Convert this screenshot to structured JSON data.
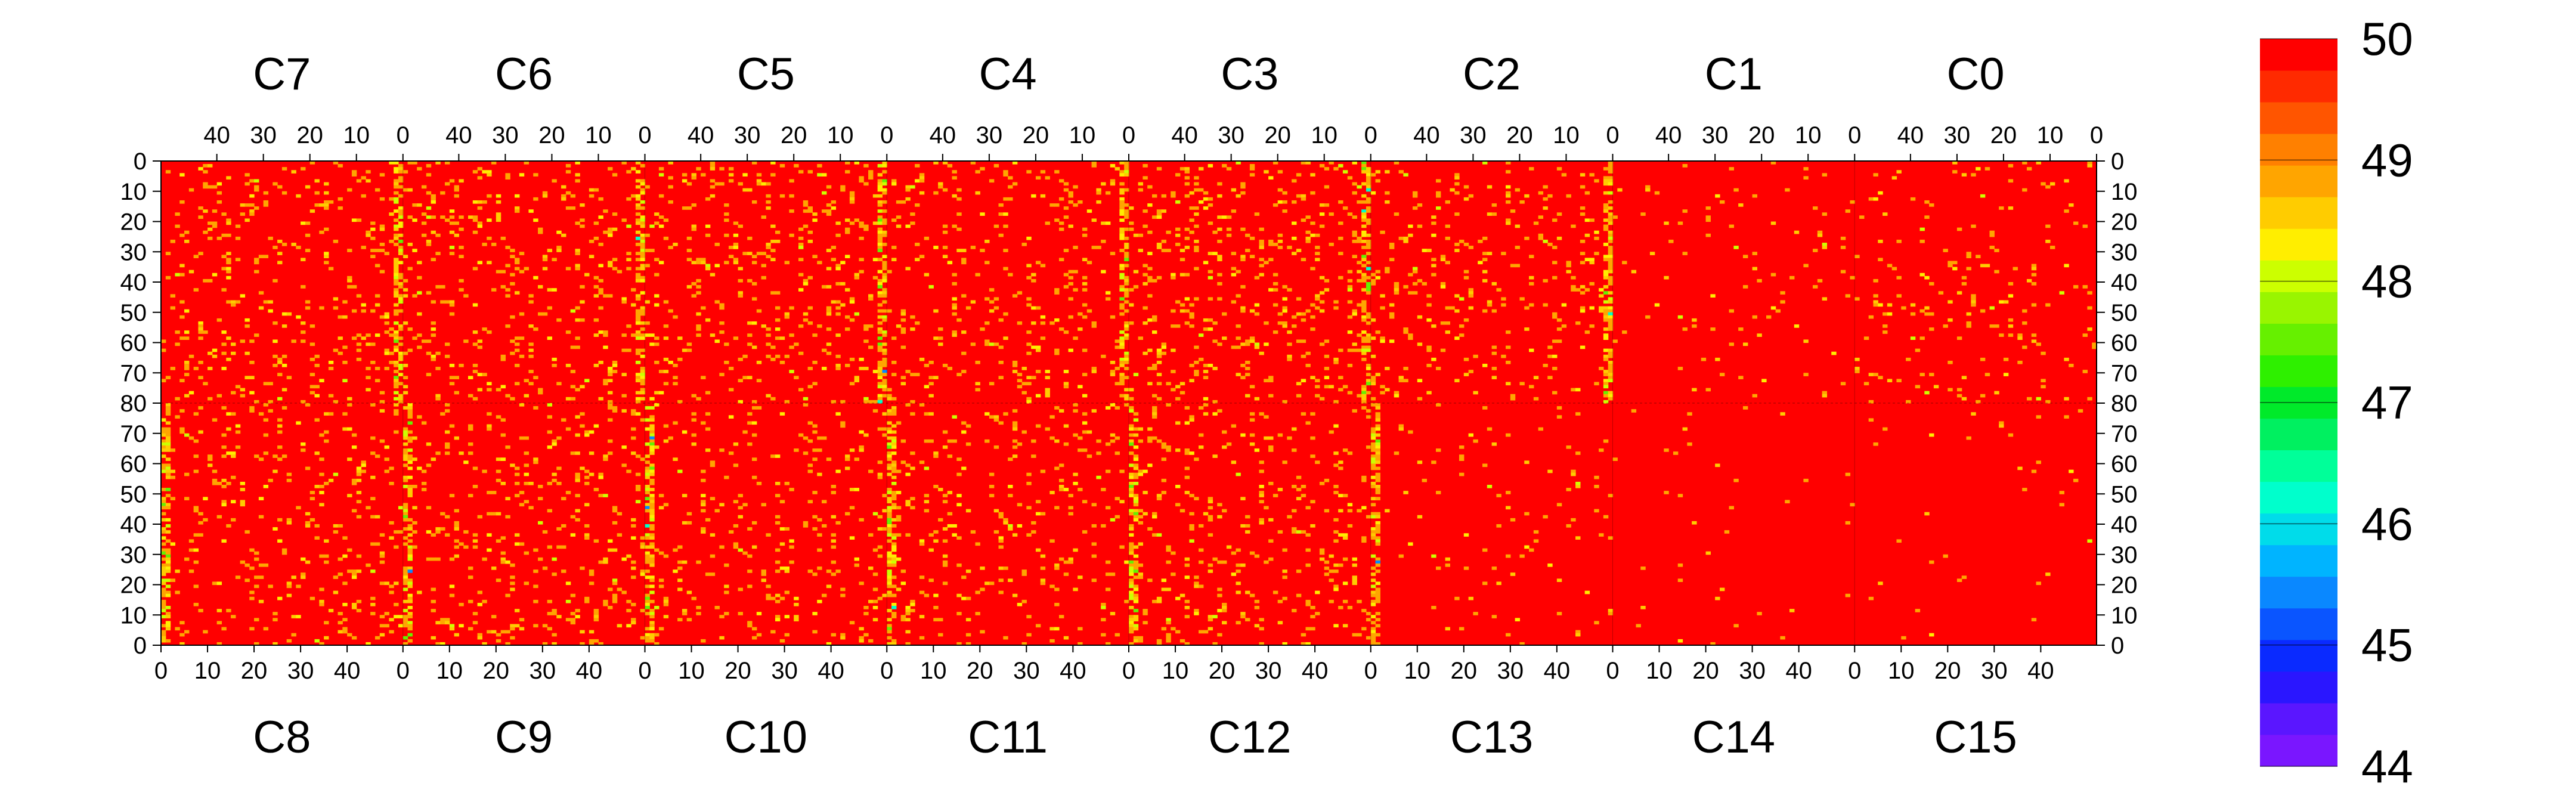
{
  "chart_data": {
    "type": "heatmap",
    "title": "",
    "top_chip_labels": [
      "C7",
      "C6",
      "C5",
      "C4",
      "C3",
      "C2",
      "C1",
      "C0"
    ],
    "bottom_chip_labels": [
      "C8",
      "C9",
      "C10",
      "C11",
      "C12",
      "C13",
      "C14",
      "C15"
    ],
    "x_tick_labels_top": [
      "40",
      "30",
      "20",
      "10",
      "0"
    ],
    "x_tick_labels_bottom": [
      "0",
      "10",
      "20",
      "30",
      "40"
    ],
    "y_tick_labels_top": [
      "0",
      "10",
      "20",
      "30",
      "40",
      "50",
      "60",
      "70",
      "80"
    ],
    "y_tick_labels_bottom": [
      "80",
      "70",
      "60",
      "50",
      "40",
      "30",
      "20",
      "10",
      "0"
    ],
    "columns_per_chip": 52,
    "rows_per_half": 80,
    "z_range": [
      44,
      50
    ],
    "colorbar_ticks": [
      "44",
      "45",
      "46",
      "47",
      "48",
      "49",
      "50"
    ],
    "chip_mean_rates": {
      "C7": 0.08,
      "C6": 0.08,
      "C5": 0.09,
      "C4": 0.08,
      "C3": 0.1,
      "C2": 0.07,
      "C1": 0.02,
      "C0": 0.04,
      "C8": 0.07,
      "C9": 0.08,
      "C10": 0.07,
      "C11": 0.06,
      "C12": 0.08,
      "C13": 0.02,
      "C14": 0.01,
      "C15": 0.01
    },
    "palette": [
      "#7a16ff",
      "#5a16ff",
      "#2a16ff",
      "#0a2aff",
      "#0a55ff",
      "#0a88ff",
      "#00b4ff",
      "#00dcea",
      "#00ffcc",
      "#00ff99",
      "#00f060",
      "#00ea2a",
      "#2ef000",
      "#66f000",
      "#99f500",
      "#ccff00",
      "#ffee00",
      "#ffcc00",
      "#ffa500",
      "#ff8000",
      "#ff5500",
      "#ff2a00",
      "#ff0000"
    ],
    "background_color": "#ff0000"
  }
}
